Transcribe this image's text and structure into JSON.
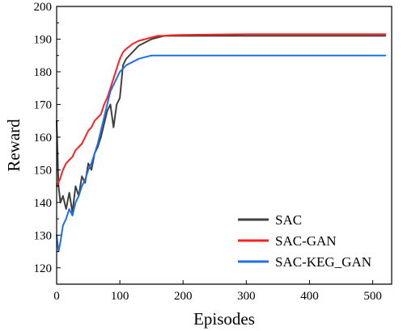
{
  "chart_data": {
    "type": "line",
    "xlabel": "Episodes",
    "ylabel": "Reward",
    "xlim": [
      0,
      530
    ],
    "ylim": [
      115,
      200
    ],
    "x_ticks": [
      0,
      100,
      200,
      300,
      400,
      500
    ],
    "y_ticks": [
      120,
      130,
      140,
      150,
      160,
      170,
      180,
      190,
      200
    ],
    "x_tick_labels": [
      "0",
      "100",
      "200",
      "300",
      "400",
      "500"
    ],
    "y_tick_labels": [
      "120",
      "130",
      "140",
      "150",
      "160",
      "170",
      "180",
      "190",
      "200"
    ],
    "legend_position": "lower-right",
    "legend": [
      "SAC",
      "SAC-GAN",
      "SAC-KEG_GAN"
    ],
    "series": [
      {
        "name": "SAC",
        "color": "#404040",
        "x": [
          0,
          3,
          6,
          10,
          15,
          20,
          25,
          30,
          35,
          40,
          45,
          50,
          55,
          60,
          65,
          70,
          75,
          80,
          85,
          90,
          95,
          100,
          105,
          110,
          120,
          130,
          140,
          150,
          160,
          170,
          180,
          200,
          250,
          300,
          350,
          400,
          450,
          500,
          520
        ],
        "values": [
          165,
          145,
          140,
          142,
          138,
          143,
          137,
          145,
          142,
          148,
          146,
          152,
          150,
          155,
          157,
          160,
          164,
          168,
          170,
          163,
          170,
          172,
          182,
          184,
          186,
          188,
          189,
          190,
          190.5,
          191,
          191,
          191,
          191,
          191,
          191,
          191,
          191,
          191,
          191
        ]
      },
      {
        "name": "SAC-GAN",
        "color": "#ff2020",
        "x": [
          0,
          5,
          10,
          15,
          20,
          25,
          30,
          35,
          40,
          45,
          50,
          55,
          60,
          65,
          70,
          75,
          80,
          85,
          90,
          95,
          100,
          105,
          110,
          120,
          130,
          140,
          150,
          160,
          170,
          180,
          200,
          250,
          300,
          350,
          400,
          450,
          500,
          520
        ],
        "values": [
          145,
          147,
          150,
          152,
          153,
          154,
          156,
          157,
          158,
          160,
          162,
          163,
          165,
          166,
          167,
          170,
          172,
          175,
          178,
          181,
          184,
          186,
          187,
          188.5,
          189.5,
          190,
          190.5,
          191,
          191,
          191.2,
          191.3,
          191.4,
          191.5,
          191.5,
          191.5,
          191.5,
          191.5,
          191.5
        ]
      },
      {
        "name": "SAC-KEG_GAN",
        "color": "#1f6fe8",
        "x": [
          0,
          3,
          6,
          10,
          15,
          20,
          25,
          30,
          35,
          40,
          45,
          50,
          55,
          60,
          65,
          70,
          75,
          80,
          85,
          90,
          95,
          100,
          110,
          120,
          130,
          140,
          150,
          160,
          170,
          180,
          200,
          250,
          300,
          350,
          400,
          450,
          500,
          520
        ],
        "values": [
          130,
          125,
          128,
          133,
          135,
          138,
          136,
          140,
          142,
          145,
          147,
          150,
          152,
          155,
          158,
          162,
          166,
          170,
          174,
          176,
          178,
          180,
          182,
          183,
          184,
          184.5,
          185,
          185,
          185,
          185,
          185,
          185,
          185,
          185,
          185,
          185,
          185,
          185
        ]
      }
    ]
  }
}
